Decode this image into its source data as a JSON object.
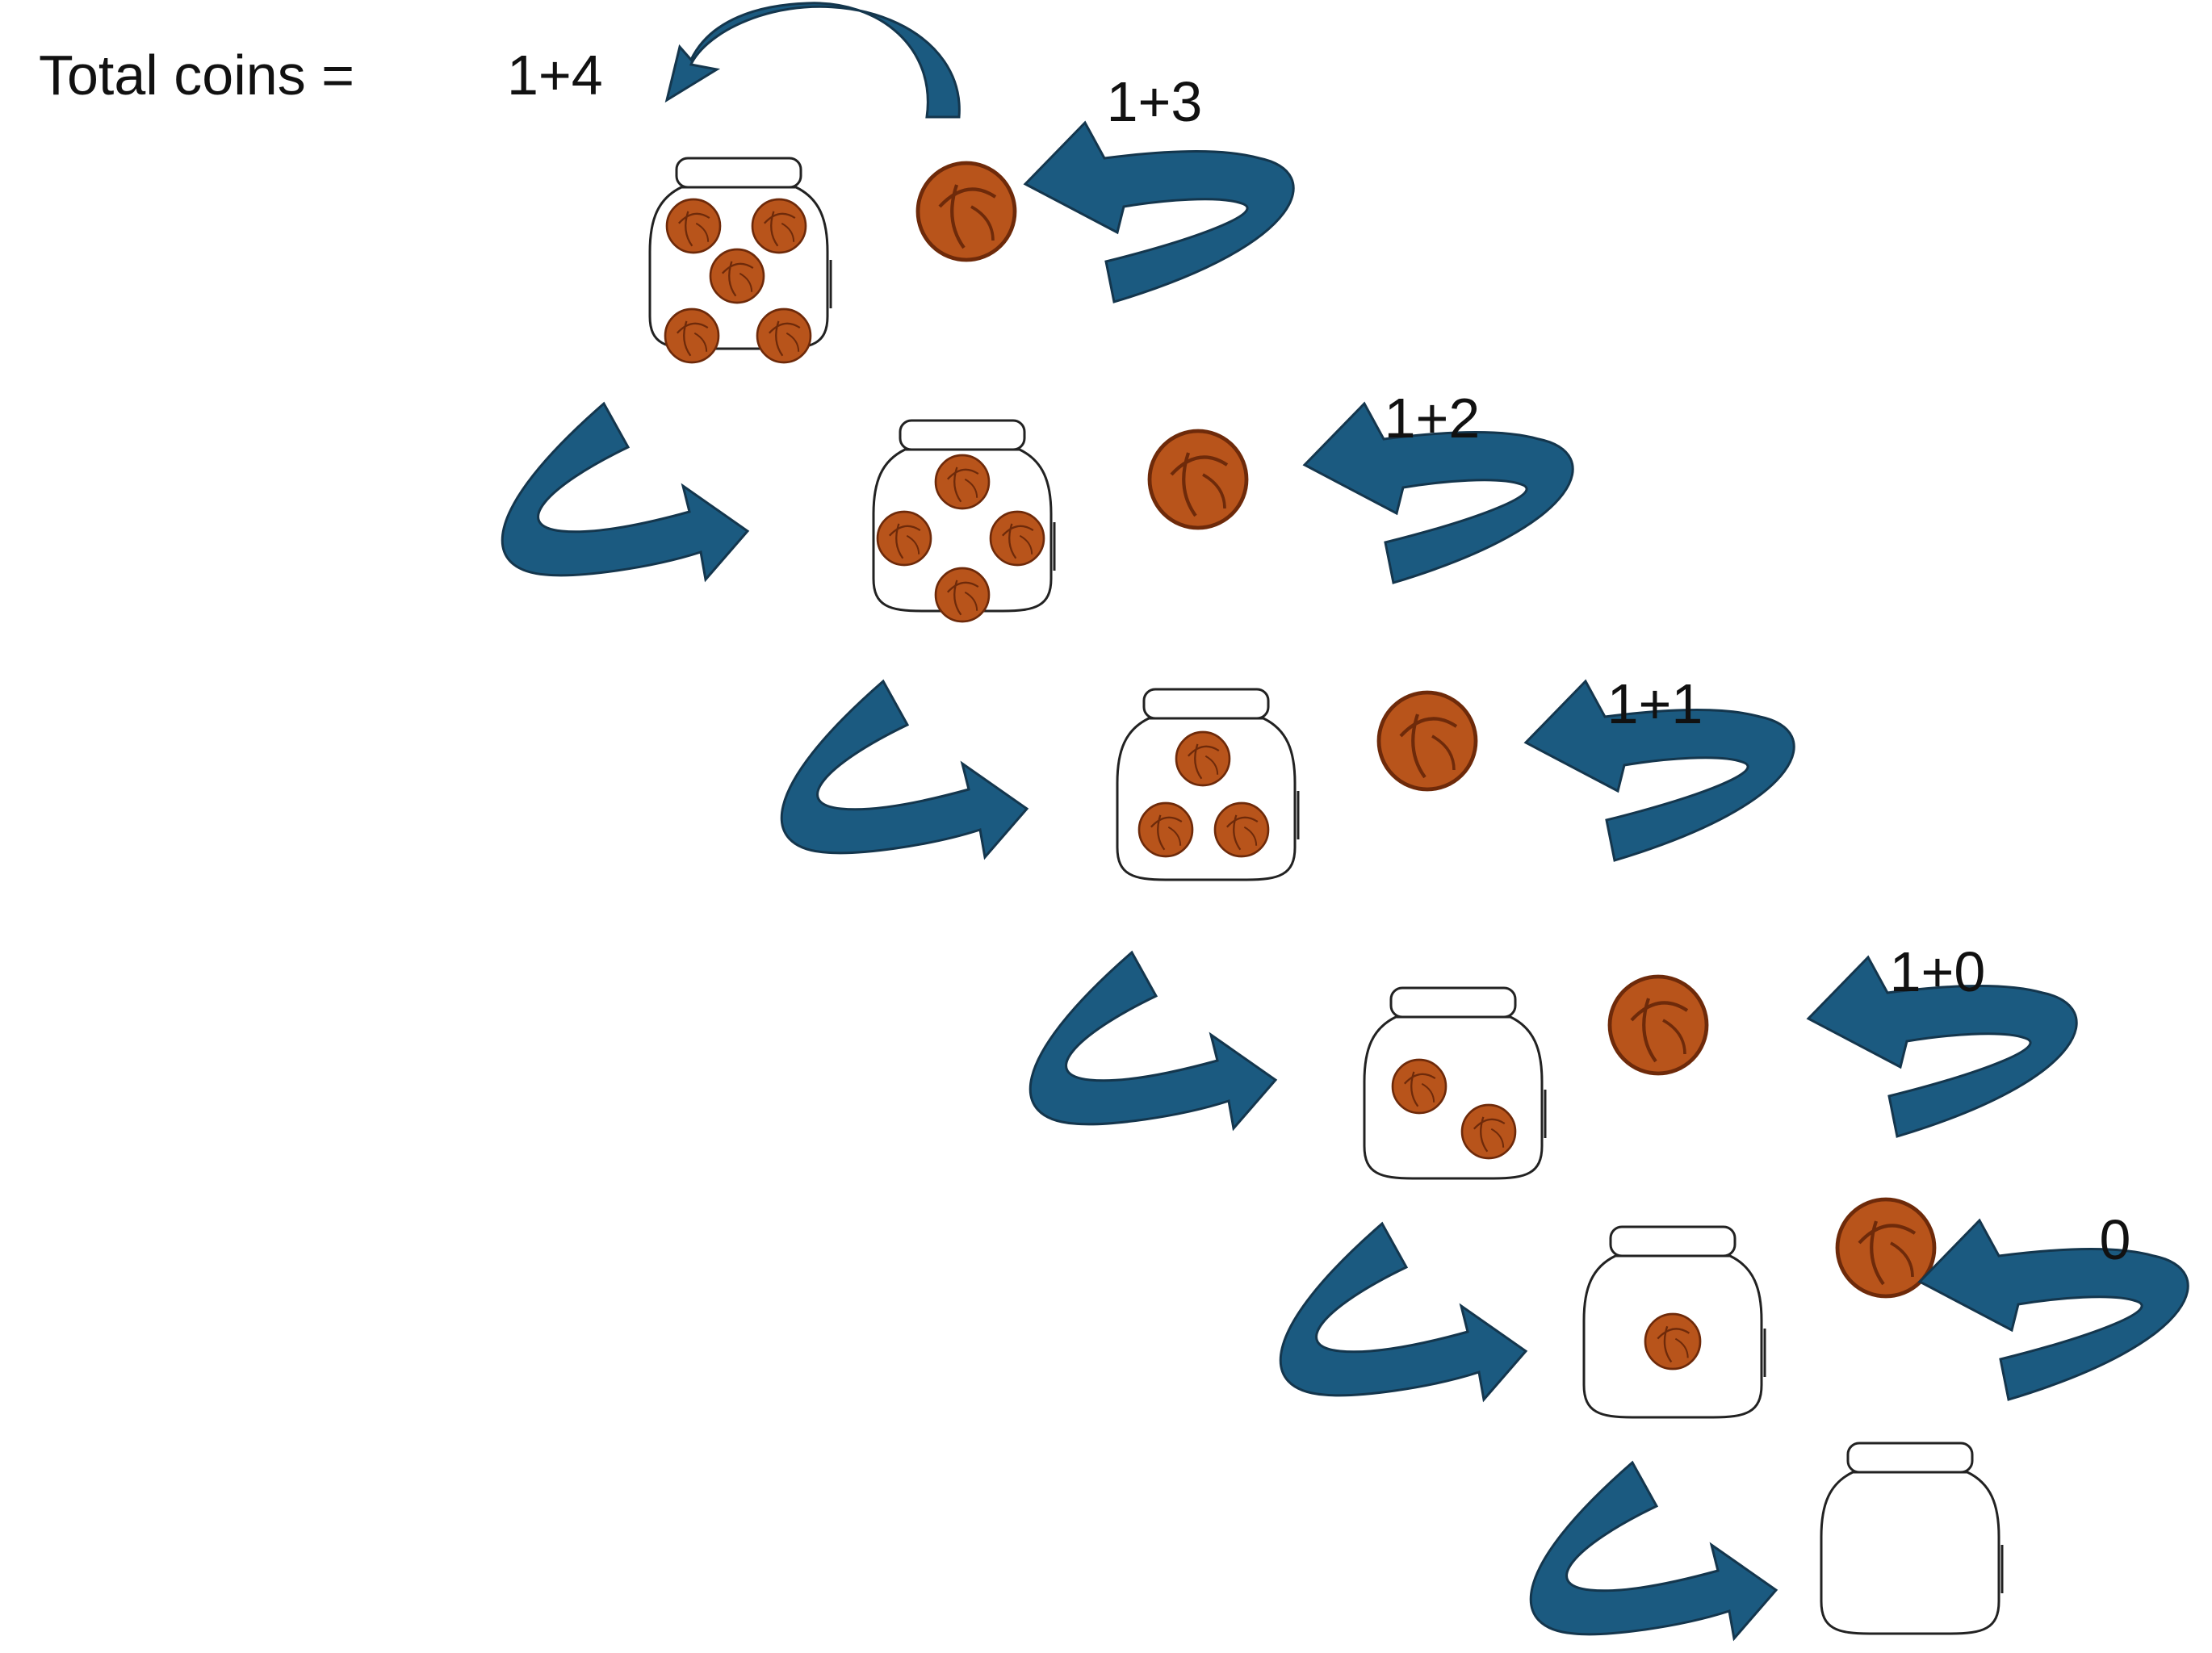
{
  "header": {
    "total_label": "Total coins =",
    "total_value": "1+4"
  },
  "colors": {
    "arrow_fill": "#1b5a80",
    "arrow_stroke": "#14364d",
    "coin_fill": "#b8541b",
    "coin_dark": "#6e2a0a",
    "jar_stroke": "#222222"
  },
  "steps": [
    {
      "label": "1+3",
      "coins_in_jar": 5
    },
    {
      "label": "1+2",
      "coins_in_jar": 4
    },
    {
      "label": "1+1",
      "coins_in_jar": 3
    },
    {
      "label": "1+0",
      "coins_in_jar": 2
    },
    {
      "label": "0",
      "coins_in_jar": 1
    }
  ],
  "final_jar": {
    "coins_in_jar": 0
  }
}
